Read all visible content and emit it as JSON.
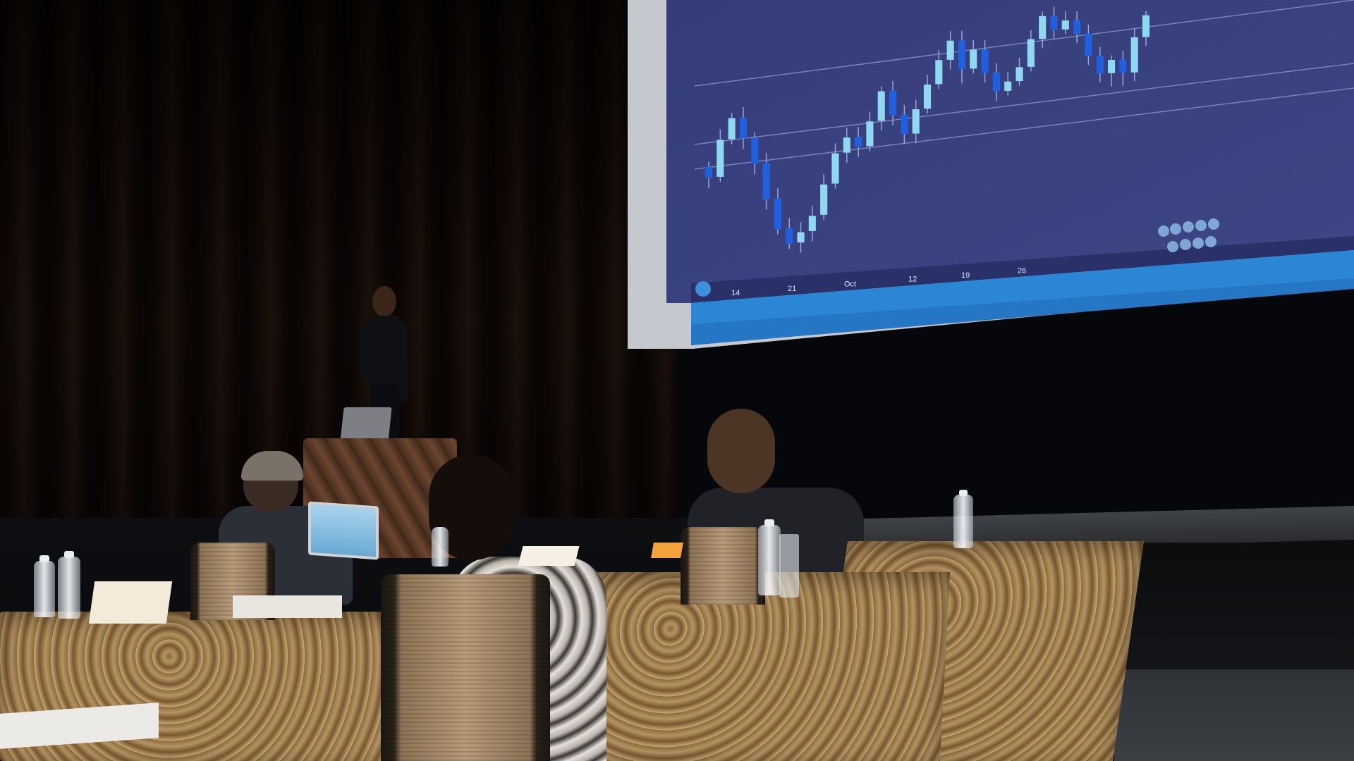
{
  "scene": {
    "description_type": "photo",
    "colors": {
      "screen_bg": "#39407a",
      "bullish_candle": "#8ed8f0",
      "bearish_candle": "#1f5fe0",
      "tablecloth": "#b49462",
      "curtain": "#2a1a11"
    }
  },
  "chart_data": {
    "type": "candlestick",
    "x_tick_labels": [
      "14",
      "21",
      "Oct",
      "12",
      "19",
      "26"
    ],
    "candles": [
      {
        "o": 62,
        "c": 58,
        "h": 64,
        "l": 54
      },
      {
        "o": 58,
        "c": 72,
        "h": 76,
        "l": 56
      },
      {
        "o": 72,
        "c": 80,
        "h": 82,
        "l": 70
      },
      {
        "o": 80,
        "c": 72,
        "h": 84,
        "l": 68
      },
      {
        "o": 72,
        "c": 62,
        "h": 74,
        "l": 58
      },
      {
        "o": 62,
        "c": 48,
        "h": 66,
        "l": 44
      },
      {
        "o": 48,
        "c": 36,
        "h": 52,
        "l": 34
      },
      {
        "o": 36,
        "c": 30,
        "h": 40,
        "l": 28
      },
      {
        "o": 30,
        "c": 34,
        "h": 38,
        "l": 26
      },
      {
        "o": 34,
        "c": 40,
        "h": 44,
        "l": 30
      },
      {
        "o": 40,
        "c": 52,
        "h": 56,
        "l": 38
      },
      {
        "o": 52,
        "c": 64,
        "h": 68,
        "l": 50
      },
      {
        "o": 64,
        "c": 70,
        "h": 74,
        "l": 60
      },
      {
        "o": 70,
        "c": 66,
        "h": 74,
        "l": 62
      },
      {
        "o": 66,
        "c": 76,
        "h": 80,
        "l": 64
      },
      {
        "o": 76,
        "c": 88,
        "h": 90,
        "l": 72
      },
      {
        "o": 88,
        "c": 78,
        "h": 92,
        "l": 74
      },
      {
        "o": 78,
        "c": 70,
        "h": 82,
        "l": 66
      },
      {
        "o": 70,
        "c": 80,
        "h": 84,
        "l": 66
      },
      {
        "o": 80,
        "c": 90,
        "h": 94,
        "l": 78
      },
      {
        "o": 90,
        "c": 100,
        "h": 104,
        "l": 88
      },
      {
        "o": 100,
        "c": 108,
        "h": 112,
        "l": 96
      },
      {
        "o": 108,
        "c": 96,
        "h": 112,
        "l": 90
      },
      {
        "o": 96,
        "c": 104,
        "h": 108,
        "l": 94
      },
      {
        "o": 104,
        "c": 94,
        "h": 108,
        "l": 90
      },
      {
        "o": 94,
        "c": 86,
        "h": 98,
        "l": 82
      },
      {
        "o": 86,
        "c": 90,
        "h": 94,
        "l": 84
      },
      {
        "o": 90,
        "c": 96,
        "h": 100,
        "l": 88
      },
      {
        "o": 96,
        "c": 108,
        "h": 112,
        "l": 94
      },
      {
        "o": 108,
        "c": 118,
        "h": 120,
        "l": 104
      },
      {
        "o": 118,
        "c": 112,
        "h": 122,
        "l": 108
      },
      {
        "o": 112,
        "c": 116,
        "h": 120,
        "l": 110
      },
      {
        "o": 116,
        "c": 110,
        "h": 120,
        "l": 106
      },
      {
        "o": 110,
        "c": 100,
        "h": 114,
        "l": 96
      },
      {
        "o": 100,
        "c": 92,
        "h": 104,
        "l": 88
      },
      {
        "o": 92,
        "c": 98,
        "h": 100,
        "l": 86
      },
      {
        "o": 98,
        "c": 92,
        "h": 102,
        "l": 86
      },
      {
        "o": 92,
        "c": 108,
        "h": 112,
        "l": 88
      },
      {
        "o": 108,
        "c": 118,
        "h": 120,
        "l": 104
      }
    ],
    "ylim": [
      20,
      125
    ]
  }
}
